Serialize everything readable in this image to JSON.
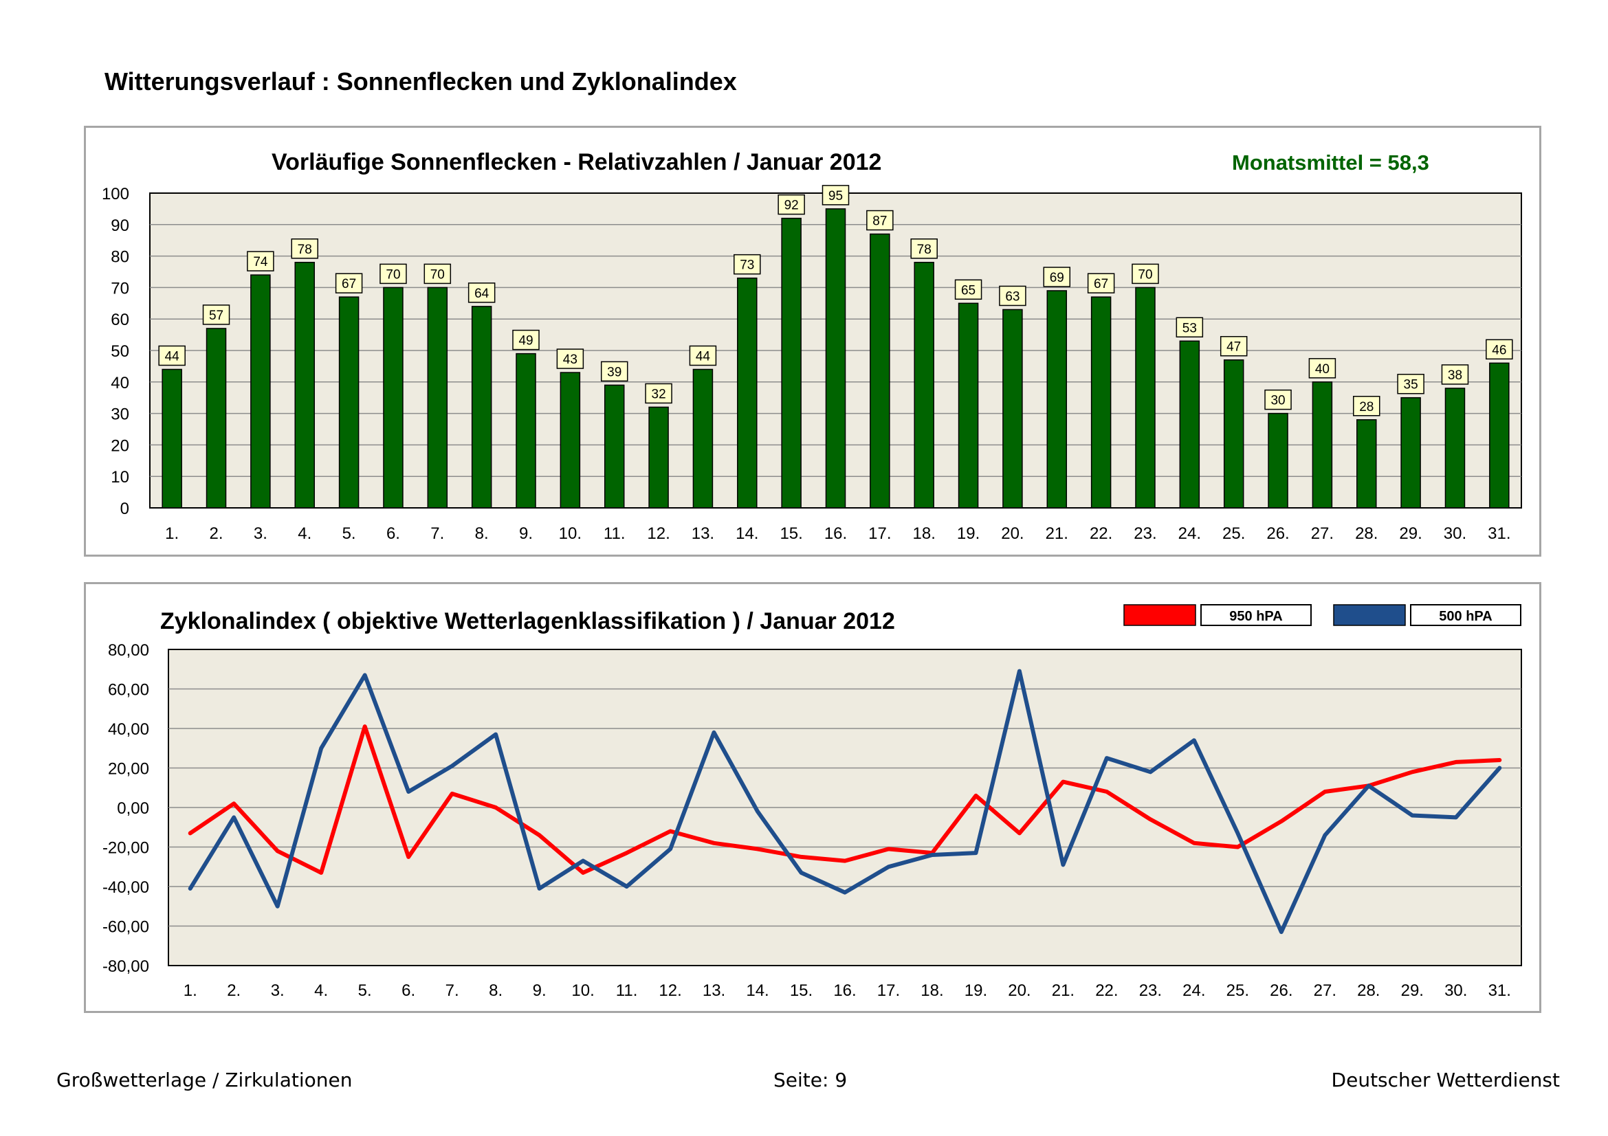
{
  "page": {
    "title": "Witterungsverlauf : Sonnenflecken und Zyklonalindex",
    "footer_left": "Großwetterlage / Zirkulationen",
    "footer_center": "Seite: 9",
    "footer_right": "Deutscher Wetterdienst"
  },
  "colors": {
    "bar_fill": "#006400",
    "label_box": "#ffffcc",
    "plot_bg": "#eeebe0",
    "series_950": "#ff0000",
    "series_500": "#1f4e8c",
    "monatsmittel_text": "#006400"
  },
  "chart_data": [
    {
      "type": "bar",
      "title": "Vorläufige Sonnenflecken - Relativzahlen   /   Januar 2012",
      "annotation": "Monatsmittel = 58,3",
      "categories": [
        "1.",
        "2.",
        "3.",
        "4.",
        "5.",
        "6.",
        "7.",
        "8.",
        "9.",
        "10.",
        "11.",
        "12.",
        "13.",
        "14.",
        "15.",
        "16.",
        "17.",
        "18.",
        "19.",
        "20.",
        "21.",
        "22.",
        "23.",
        "24.",
        "25.",
        "26.",
        "27.",
        "28.",
        "29.",
        "30.",
        "31."
      ],
      "values": [
        44,
        57,
        74,
        78,
        67,
        70,
        70,
        64,
        49,
        43,
        39,
        32,
        44,
        73,
        92,
        95,
        87,
        78,
        65,
        63,
        69,
        67,
        70,
        53,
        47,
        30,
        40,
        28,
        35,
        38,
        46
      ],
      "ylim": [
        0,
        100
      ],
      "yticks": [
        "0",
        "10",
        "20",
        "30",
        "40",
        "50",
        "60",
        "70",
        "80",
        "90",
        "100"
      ],
      "grid": true,
      "data_labels": true
    },
    {
      "type": "line",
      "title": "Zyklonalindex  ( objektive Wetterlagenklassifikation )  /  Januar 2012",
      "categories": [
        "1.",
        "2.",
        "3.",
        "4.",
        "5.",
        "6.",
        "7.",
        "8.",
        "9.",
        "10.",
        "11.",
        "12.",
        "13.",
        "14.",
        "15.",
        "16.",
        "17.",
        "18.",
        "19.",
        "20.",
        "21.",
        "22.",
        "23.",
        "24.",
        "25.",
        "26.",
        "27.",
        "28.",
        "29.",
        "30.",
        "31."
      ],
      "ylim": [
        -80,
        80
      ],
      "yticks": [
        "-80,00",
        "-60,00",
        "-40,00",
        "-20,00",
        "0,00",
        "20,00",
        "40,00",
        "60,00",
        "80,00"
      ],
      "grid": true,
      "legend_position": "top-right",
      "series": [
        {
          "name": "950 hPA",
          "values": [
            -13,
            2,
            -22,
            -33,
            41,
            -25,
            7,
            0,
            -14,
            -33,
            -23,
            -12,
            -18,
            -21,
            -25,
            -27,
            -21,
            -23,
            6,
            -13,
            13,
            8,
            -6,
            -18,
            -20,
            -7,
            8,
            11,
            18,
            23,
            24
          ]
        },
        {
          "name": "500 hPA",
          "values": [
            -41,
            -5,
            -50,
            30,
            67,
            8,
            21,
            37,
            -41,
            -27,
            -40,
            -21,
            38,
            -2,
            -33,
            -43,
            -30,
            -24,
            -23,
            69,
            -29,
            25,
            18,
            34,
            -13,
            -63,
            -14,
            11,
            -4,
            -5,
            20
          ]
        }
      ]
    }
  ]
}
